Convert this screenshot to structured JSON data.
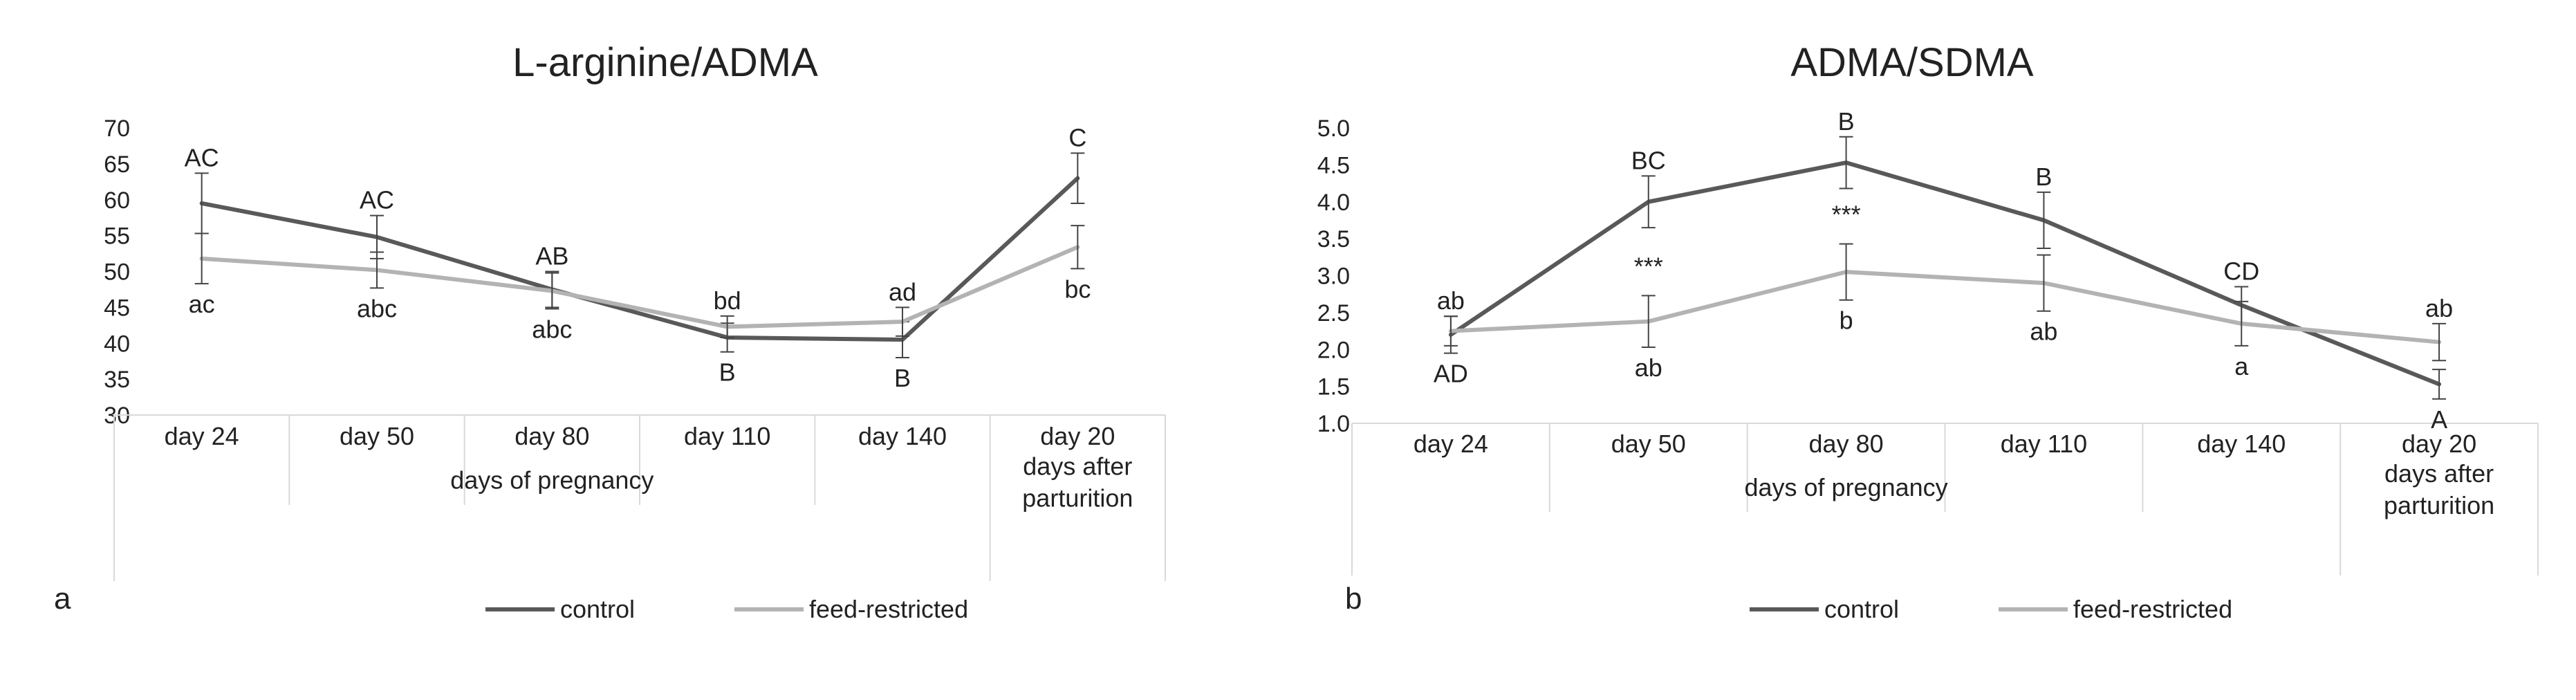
{
  "chart_data": [
    {
      "type": "line",
      "title": "L-arginine/ADMA",
      "panel_label": "a",
      "ylim": [
        30,
        70
      ],
      "yticks": [
        "30",
        "35",
        "40",
        "45",
        "50",
        "55",
        "60",
        "65",
        "70"
      ],
      "categories": [
        "day 24",
        "day 50",
        "day 80",
        "day 110",
        "day 140",
        "day 20"
      ],
      "groups": [
        {
          "label": "days of pregnancy",
          "lines": [
            "days of pregnancy"
          ]
        },
        {
          "label": "days after parturition",
          "lines": [
            "days after",
            "parturition"
          ]
        }
      ],
      "grid": false,
      "legend_position": "bottom",
      "series": [
        {
          "name": "control",
          "color": "#595959",
          "values": [
            59.5,
            54.8,
            47.5,
            40.8,
            40.5,
            63.0
          ],
          "errors": [
            4.2,
            3.0,
            2.5,
            2.0,
            2.5,
            3.5
          ],
          "labels": [
            "AC",
            "AC",
            "AB",
            "B",
            "B",
            "C"
          ]
        },
        {
          "name": "feed-restricted",
          "color": "#b3b3b3",
          "values": [
            51.8,
            50.2,
            47.3,
            42.3,
            43.0,
            53.4
          ],
          "errors": [
            3.5,
            2.5,
            2.5,
            1.5,
            2.0,
            3.0
          ],
          "labels": [
            "ac",
            "abc",
            "abc",
            "bd",
            "ad",
            "bc"
          ]
        }
      ]
    },
    {
      "type": "line",
      "title": "ADMA/SDMA",
      "panel_label": "b",
      "ylim": [
        1.0,
        5.0
      ],
      "yticks": [
        "1.0",
        "1.5",
        "2.0",
        "2.5",
        "3.0",
        "3.5",
        "4.0",
        "4.5",
        "5.0"
      ],
      "categories": [
        "day 24",
        "day 50",
        "day 80",
        "day 110",
        "day 140",
        "day 20"
      ],
      "groups": [
        {
          "label": "days of pregnancy",
          "lines": [
            "days of pregnancy"
          ]
        },
        {
          "label": "days after parturition",
          "lines": [
            "days after",
            "parturition"
          ]
        }
      ],
      "grid": false,
      "legend_position": "bottom",
      "significance": [
        "",
        "***",
        "***",
        "",
        "",
        ""
      ],
      "series": [
        {
          "name": "control",
          "color": "#595959",
          "values": [
            2.2,
            4.0,
            4.53,
            3.75,
            2.6,
            1.53
          ],
          "errors": [
            0.25,
            0.35,
            0.35,
            0.38,
            0.25,
            0.2
          ],
          "labels": [
            "AD",
            "BC",
            "B",
            "B",
            "CD",
            "A"
          ]
        },
        {
          "name": "feed-restricted",
          "color": "#b3b3b3",
          "values": [
            2.25,
            2.38,
            3.05,
            2.9,
            2.35,
            2.1
          ],
          "errors": [
            0.2,
            0.35,
            0.38,
            0.38,
            0.3,
            0.25
          ],
          "labels": [
            "ab",
            "ab",
            "b",
            "ab",
            "a",
            "ab"
          ]
        }
      ]
    }
  ]
}
